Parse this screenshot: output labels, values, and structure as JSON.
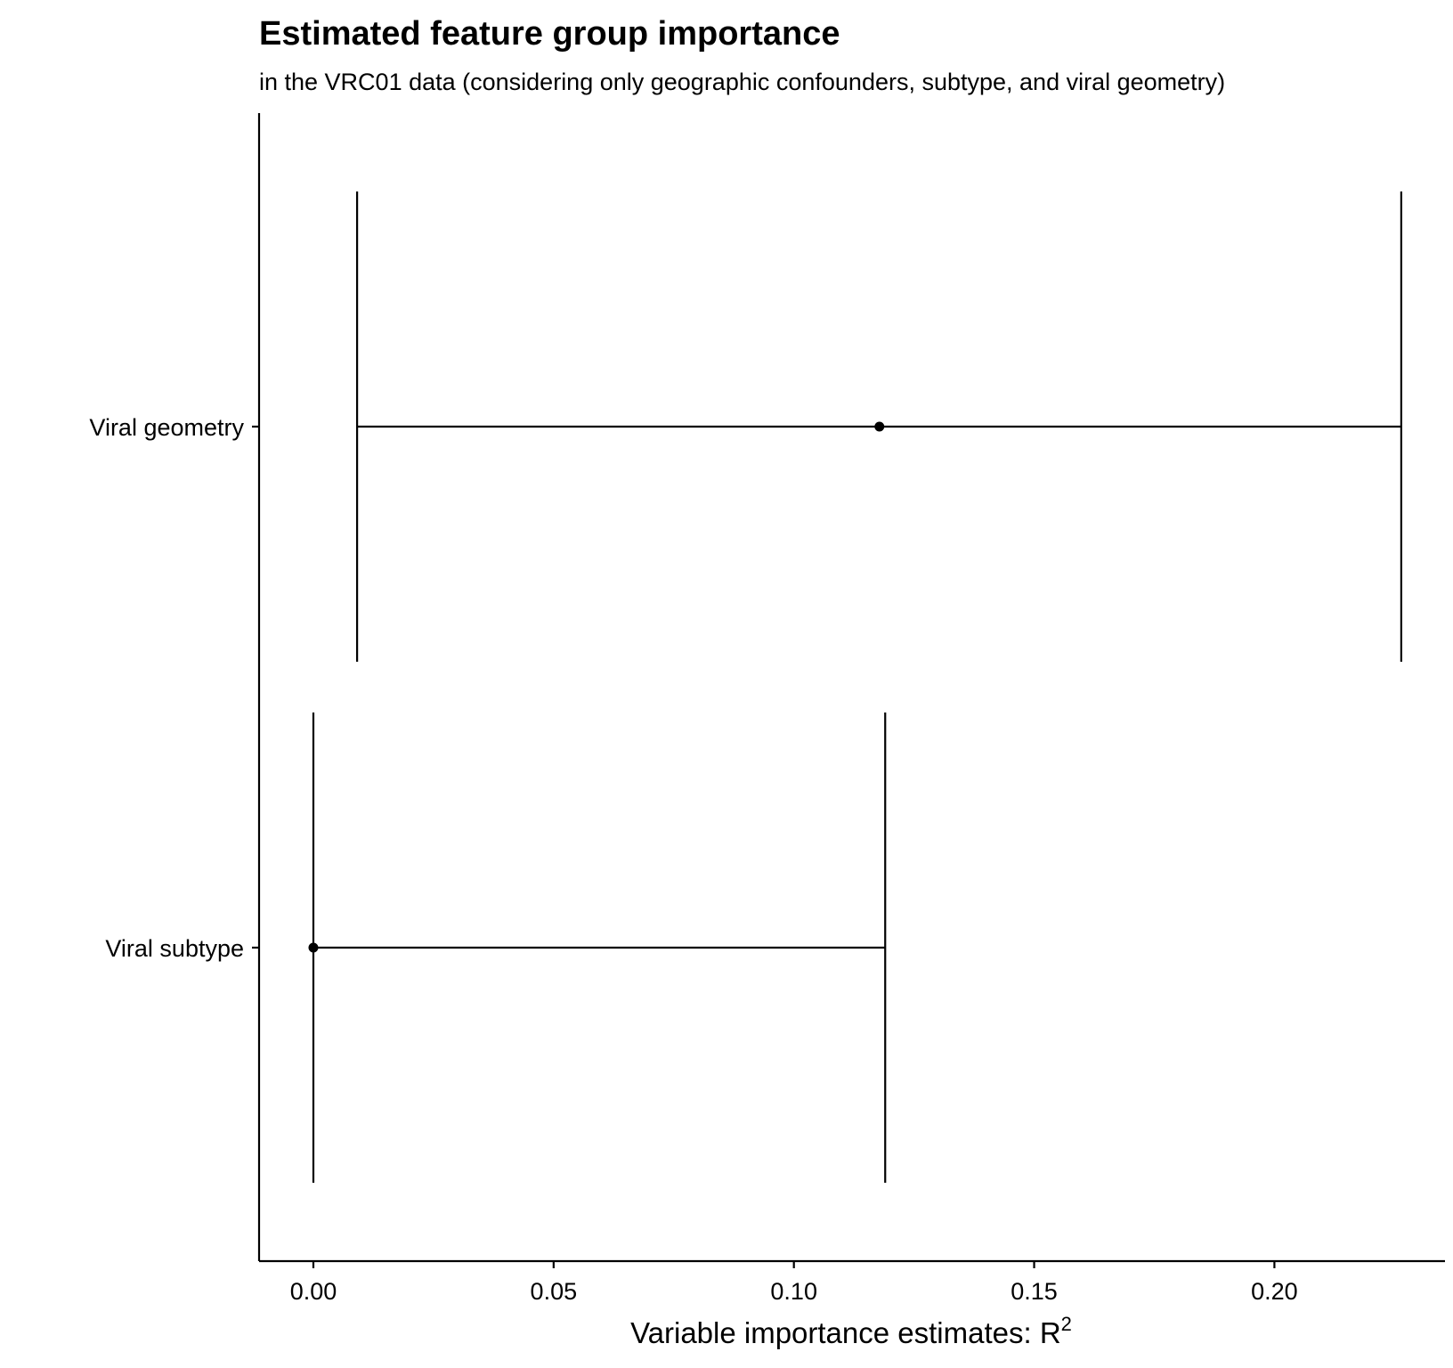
{
  "chart_data": {
    "type": "errorbar",
    "title": "Estimated feature group importance",
    "subtitle": "in the VRC01 data (considering only geographic confounders, subtype, and viral geometry)",
    "xlabel": "Variable importance estimates: R",
    "xlabel_superscript": "2",
    "ylabel": "",
    "xlim": [
      -0.0113,
      0.2355
    ],
    "x_ticks": [
      0.0,
      0.05,
      0.1,
      0.15,
      0.2
    ],
    "x_tick_labels": [
      "0.00",
      "0.05",
      "0.10",
      "0.15",
      "0.20"
    ],
    "categories": [
      "Viral geometry",
      "Viral subtype"
    ],
    "points": [
      {
        "category": "Viral geometry",
        "estimate": 0.1178,
        "lower": 0.0091,
        "upper": 0.2264
      },
      {
        "category": "Viral subtype",
        "estimate": 0.0,
        "lower": 0.0,
        "upper": 0.119
      }
    ],
    "grid": false,
    "legend": "none"
  },
  "colors": {
    "line": "#000000",
    "point": "#000000",
    "background": "#ffffff"
  }
}
